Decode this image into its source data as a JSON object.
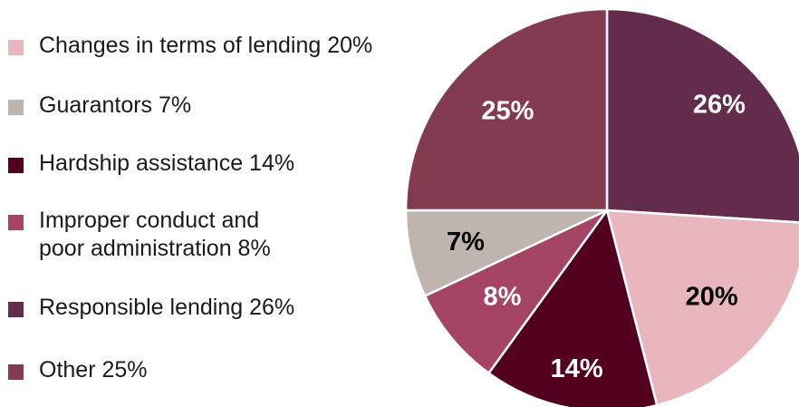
{
  "chart_data": {
    "type": "pie",
    "title": "",
    "start": "12 o'clock, clockwise",
    "slices": [
      {
        "name": "Responsible lending",
        "value": 26,
        "label": "26%",
        "legend": "Responsible lending 26%",
        "color": "#642c4c",
        "label_color": "#ffffff"
      },
      {
        "name": "Changes in terms of lending",
        "value": 20,
        "label": "20%",
        "legend": "Changes in terms of lending 20%",
        "color": "#e8b6bc",
        "label_color": "#000000"
      },
      {
        "name": "Hardship assistance",
        "value": 14,
        "label": "14%",
        "legend": "Hardship assistance 14%",
        "color": "#530020",
        "label_color": "#ffffff"
      },
      {
        "name": "Improper conduct and poor administration",
        "value": 8,
        "label": "8%",
        "legend": "Improper conduct and poor administration 8%",
        "color": "#a64466",
        "label_color": "#ffffff"
      },
      {
        "name": "Guarantors",
        "value": 7,
        "label": "7%",
        "legend": "Guarantors 7%",
        "color": "#bfb4ae",
        "label_color": "#000000"
      },
      {
        "name": "Other",
        "value": 25,
        "label": "25%",
        "legend": "Other 25%",
        "color": "#833b50",
        "label_color": "#ffffff"
      }
    ],
    "legend_order": [
      "Changes in terms of lending",
      "Guarantors",
      "Hardship assistance",
      "Improper conduct and poor administration",
      "Responsible lending",
      "Other"
    ],
    "legend_position": "left"
  }
}
